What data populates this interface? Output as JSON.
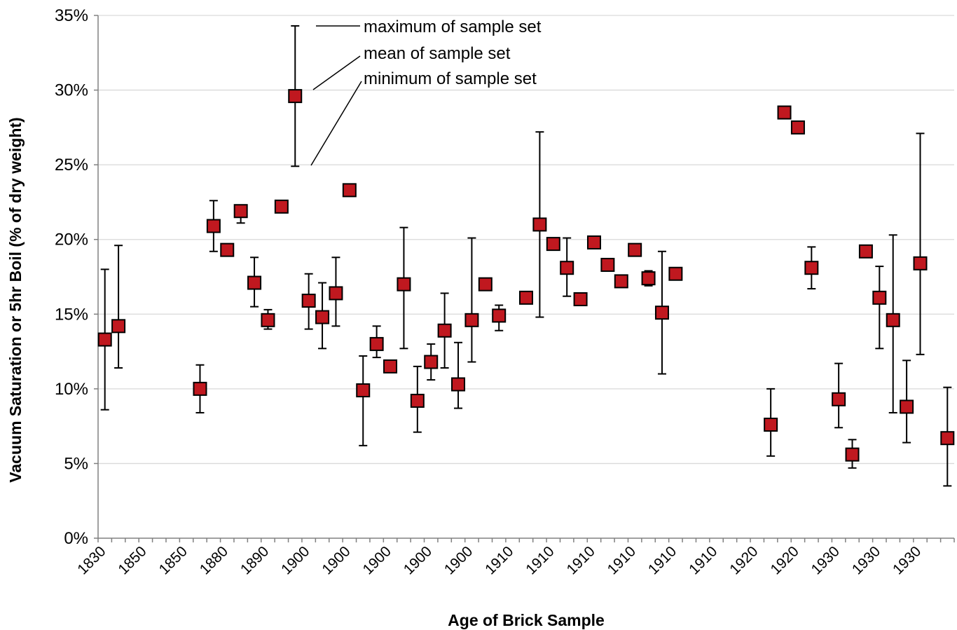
{
  "chart_data": {
    "type": "scatter",
    "xlabel": "Age of Brick Sample",
    "ylabel": "Vacuum Saturation or 5hr Boil (% of dry weight)",
    "ylim": [
      0,
      35
    ],
    "y_ticks": [
      "0%",
      "5%",
      "10%",
      "15%",
      "20%",
      "25%",
      "30%",
      "35%"
    ],
    "y_tick_values": [
      0,
      5,
      10,
      15,
      20,
      25,
      30,
      35
    ],
    "grid": true,
    "marker": {
      "shape": "square",
      "color": "#c0181f",
      "border": "#000000"
    },
    "x_tick_labels": [
      "1830",
      "1850",
      "1850",
      "1880",
      "1890",
      "1900",
      "1900",
      "1900",
      "1900",
      "1900",
      "1910",
      "1910",
      "1910",
      "1910",
      "1910",
      "1910",
      "1920",
      "1920",
      "1930",
      "1930",
      "1930"
    ],
    "legend_annotations": [
      "maximum of sample set",
      "mean of sample set",
      "minimum of sample set"
    ],
    "points": [
      {
        "mean": 13.3,
        "min": 8.6,
        "max": 18.0
      },
      {
        "mean": 14.2,
        "min": 11.4,
        "max": 19.6
      },
      null,
      null,
      null,
      null,
      null,
      {
        "mean": 10.0,
        "min": 8.4,
        "max": 11.6
      },
      {
        "mean": 20.9,
        "min": 19.2,
        "max": 22.6
      },
      {
        "mean": 19.3
      },
      {
        "mean": 21.9,
        "min": 21.1,
        "max": 21.9
      },
      {
        "mean": 17.1,
        "min": 15.5,
        "max": 18.8
      },
      {
        "mean": 14.6,
        "min": 14.0,
        "max": 15.3
      },
      {
        "mean": 22.2
      },
      {
        "mean": 29.6,
        "min": 24.9,
        "max": 34.3
      },
      {
        "mean": 15.9,
        "min": 14.0,
        "max": 17.7
      },
      {
        "mean": 14.8,
        "min": 12.7,
        "max": 17.1
      },
      {
        "mean": 16.4,
        "min": 14.2,
        "max": 18.8
      },
      {
        "mean": 23.3
      },
      {
        "mean": 9.9,
        "min": 6.2,
        "max": 12.2
      },
      {
        "mean": 13.0,
        "min": 12.1,
        "max": 14.2
      },
      {
        "mean": 11.5
      },
      {
        "mean": 17.0,
        "min": 12.7,
        "max": 20.8
      },
      {
        "mean": 9.2,
        "min": 7.1,
        "max": 11.5
      },
      {
        "mean": 11.8,
        "min": 10.6,
        "max": 13.0
      },
      {
        "mean": 13.9,
        "min": 11.4,
        "max": 16.4
      },
      {
        "mean": 10.3,
        "min": 8.7,
        "max": 13.1
      },
      {
        "mean": 14.6,
        "min": 11.8,
        "max": 20.1
      },
      {
        "mean": 17.0,
        "min": 16.8,
        "max": 17.4
      },
      {
        "mean": 14.9,
        "min": 13.9,
        "max": 15.6
      },
      null,
      {
        "mean": 16.1
      },
      {
        "mean": 21.0,
        "min": 14.8,
        "max": 27.2
      },
      {
        "mean": 19.7
      },
      {
        "mean": 18.1,
        "min": 16.2,
        "max": 20.1
      },
      {
        "mean": 16.0
      },
      {
        "mean": 19.8
      },
      {
        "mean": 18.3
      },
      {
        "mean": 17.2
      },
      {
        "mean": 19.3
      },
      {
        "mean": 17.4,
        "min": 16.9,
        "max": 17.9
      },
      {
        "mean": 15.1,
        "min": 11.0,
        "max": 19.2
      },
      {
        "mean": 17.7
      },
      null,
      null,
      null,
      null,
      null,
      null,
      {
        "mean": 7.6,
        "min": 5.5,
        "max": 10.0
      },
      {
        "mean": 28.5
      },
      {
        "mean": 27.5
      },
      {
        "mean": 18.1,
        "min": 16.7,
        "max": 19.5
      },
      null,
      {
        "mean": 9.3,
        "min": 7.4,
        "max": 11.7
      },
      {
        "mean": 5.6,
        "min": 4.7,
        "max": 6.6
      },
      {
        "mean": 19.2
      },
      {
        "mean": 16.1,
        "min": 12.7,
        "max": 18.2
      },
      {
        "mean": 14.6,
        "min": 8.4,
        "max": 20.3
      },
      {
        "mean": 8.8,
        "min": 6.4,
        "max": 11.9
      },
      {
        "mean": 18.4,
        "min": 12.3,
        "max": 27.1
      },
      null,
      {
        "mean": 6.7,
        "min": 3.5,
        "max": 10.1
      }
    ]
  }
}
